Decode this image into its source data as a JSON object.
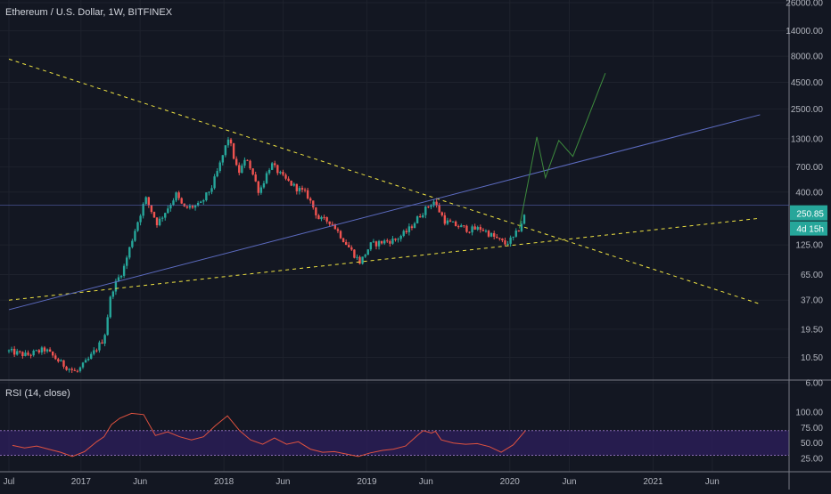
{
  "chart_data": [
    {
      "type": "candlestick",
      "title": "Ethereum / U.S. Dollar, 1W, BITFINEX",
      "y_scale": "log",
      "y_ticks": [
        "26000.00",
        "14000.00",
        "8000.00",
        "4500.00",
        "2500.00",
        "1300.00",
        "700.00",
        "400.00",
        "125.00",
        "65.00",
        "37.00",
        "19.50",
        "10.50",
        "6.00"
      ],
      "y_tick_values": [
        26000,
        14000,
        8000,
        4500,
        2500,
        1300,
        700,
        400,
        125,
        65,
        37,
        19.5,
        10.5,
        6
      ],
      "x_ticks": [
        "Jul",
        "2017",
        "Jun",
        "2018",
        "Jun",
        "2019",
        "Jun",
        "2020",
        "Jun",
        "2021",
        "Jun"
      ],
      "x_tick_dates": [
        "2016-07-01",
        "2017-01-01",
        "2017-06-01",
        "2018-01-01",
        "2018-06-01",
        "2019-01-01",
        "2019-06-01",
        "2020-01-01",
        "2020-06-01",
        "2021-01-01",
        "2021-06-01"
      ],
      "last_price": "250.85",
      "countdown": "4d 15h",
      "price_path": [
        [
          "2016-07-01",
          12
        ],
        [
          "2016-08-15",
          11
        ],
        [
          "2016-10-01",
          12.5
        ],
        [
          "2016-11-15",
          9
        ],
        [
          "2016-12-20",
          7.5
        ],
        [
          "2017-01-20",
          10
        ],
        [
          "2017-03-01",
          16
        ],
        [
          "2017-03-20",
          45
        ],
        [
          "2017-04-20",
          75
        ],
        [
          "2017-05-20",
          180
        ],
        [
          "2017-06-15",
          350
        ],
        [
          "2017-07-15",
          200
        ],
        [
          "2017-08-15",
          300
        ],
        [
          "2017-09-01",
          380
        ],
        [
          "2017-09-20",
          280
        ],
        [
          "2017-11-01",
          300
        ],
        [
          "2017-12-01",
          450
        ],
        [
          "2017-12-20",
          700
        ],
        [
          "2018-01-13",
          1350
        ],
        [
          "2018-02-06",
          600
        ],
        [
          "2018-03-01",
          850
        ],
        [
          "2018-04-01",
          400
        ],
        [
          "2018-05-01",
          750
        ],
        [
          "2018-06-01",
          550
        ],
        [
          "2018-07-01",
          450
        ],
        [
          "2018-08-01",
          380
        ],
        [
          "2018-09-01",
          220
        ],
        [
          "2018-10-01",
          210
        ],
        [
          "2018-11-15",
          120
        ],
        [
          "2018-12-15",
          85
        ],
        [
          "2019-01-10",
          125
        ],
        [
          "2019-02-15",
          135
        ],
        [
          "2019-03-15",
          140
        ],
        [
          "2019-04-15",
          170
        ],
        [
          "2019-05-20",
          250
        ],
        [
          "2019-06-20",
          330
        ],
        [
          "2019-07-20",
          210
        ],
        [
          "2019-08-20",
          190
        ],
        [
          "2019-09-20",
          175
        ],
        [
          "2019-10-20",
          180
        ],
        [
          "2019-11-20",
          150
        ],
        [
          "2019-12-20",
          128
        ],
        [
          "2020-01-10",
          145
        ],
        [
          "2020-01-25",
          180
        ],
        [
          "2020-02-10",
          250.85
        ]
      ],
      "lines": [
        {
          "name": "descending resistance",
          "style": "dashed",
          "color": "#f0e442",
          "from": [
            "2016-07-01",
            7500
          ],
          "to": [
            "2021-10-01",
            34
          ]
        },
        {
          "name": "ascending support",
          "style": "dashed",
          "color": "#f0e442",
          "from": [
            "2016-07-01",
            37
          ],
          "to": [
            "2021-10-01",
            225
          ]
        },
        {
          "name": "trend line",
          "style": "solid",
          "color": "#5c6bc0",
          "from": [
            "2016-07-01",
            30
          ],
          "to": [
            "2021-10-01",
            2200
          ]
        },
        {
          "name": "projection",
          "style": "solid",
          "color": "#3d8b3d",
          "points": [
            [
              "2020-01-25",
              180
            ],
            [
              "2020-03-10",
              1350
            ],
            [
              "2020-04-01",
              550
            ],
            [
              "2020-05-05",
              1250
            ],
            [
              "2020-06-10",
              880
            ],
            [
              "2020-09-01",
              5500
            ]
          ]
        },
        {
          "name": "horizontal level",
          "style": "solid",
          "color": "#5c6bc0",
          "y": 300
        }
      ]
    },
    {
      "type": "line",
      "title": "RSI (14, close)",
      "y_ticks": [
        "100.00",
        "75.00",
        "50.00",
        "25.00"
      ],
      "y_tick_values": [
        100,
        75,
        50,
        25
      ],
      "upper_band": 70,
      "lower_band": 30,
      "band_color": "#2e1f5e",
      "line_color": "#e0523f",
      "series": [
        [
          "2016-07-10",
          46
        ],
        [
          "2016-08-10",
          42
        ],
        [
          "2016-09-10",
          45
        ],
        [
          "2016-10-10",
          40
        ],
        [
          "2016-11-10",
          35
        ],
        [
          "2016-12-10",
          28
        ],
        [
          "2017-01-10",
          36
        ],
        [
          "2017-02-10",
          52
        ],
        [
          "2017-03-01",
          60
        ],
        [
          "2017-03-20",
          80
        ],
        [
          "2017-04-10",
          90
        ],
        [
          "2017-05-10",
          98
        ],
        [
          "2017-06-10",
          96
        ],
        [
          "2017-07-10",
          62
        ],
        [
          "2017-08-10",
          68
        ],
        [
          "2017-09-10",
          60
        ],
        [
          "2017-10-10",
          55
        ],
        [
          "2017-11-10",
          60
        ],
        [
          "2017-12-10",
          78
        ],
        [
          "2018-01-10",
          94
        ],
        [
          "2018-02-10",
          70
        ],
        [
          "2018-03-10",
          55
        ],
        [
          "2018-04-10",
          48
        ],
        [
          "2018-05-10",
          58
        ],
        [
          "2018-06-10",
          48
        ],
        [
          "2018-07-10",
          52
        ],
        [
          "2018-08-10",
          40
        ],
        [
          "2018-09-10",
          35
        ],
        [
          "2018-10-10",
          36
        ],
        [
          "2018-11-10",
          32
        ],
        [
          "2018-12-10",
          28
        ],
        [
          "2019-01-10",
          34
        ],
        [
          "2019-02-10",
          38
        ],
        [
          "2019-03-10",
          40
        ],
        [
          "2019-04-10",
          45
        ],
        [
          "2019-05-10",
          62
        ],
        [
          "2019-05-25",
          70
        ],
        [
          "2019-06-15",
          66
        ],
        [
          "2019-06-25",
          69
        ],
        [
          "2019-07-10",
          55
        ],
        [
          "2019-08-10",
          50
        ],
        [
          "2019-09-10",
          48
        ],
        [
          "2019-10-10",
          49
        ],
        [
          "2019-11-10",
          44
        ],
        [
          "2019-12-10",
          35
        ],
        [
          "2020-01-10",
          47
        ],
        [
          "2020-02-10",
          70
        ]
      ]
    }
  ]
}
